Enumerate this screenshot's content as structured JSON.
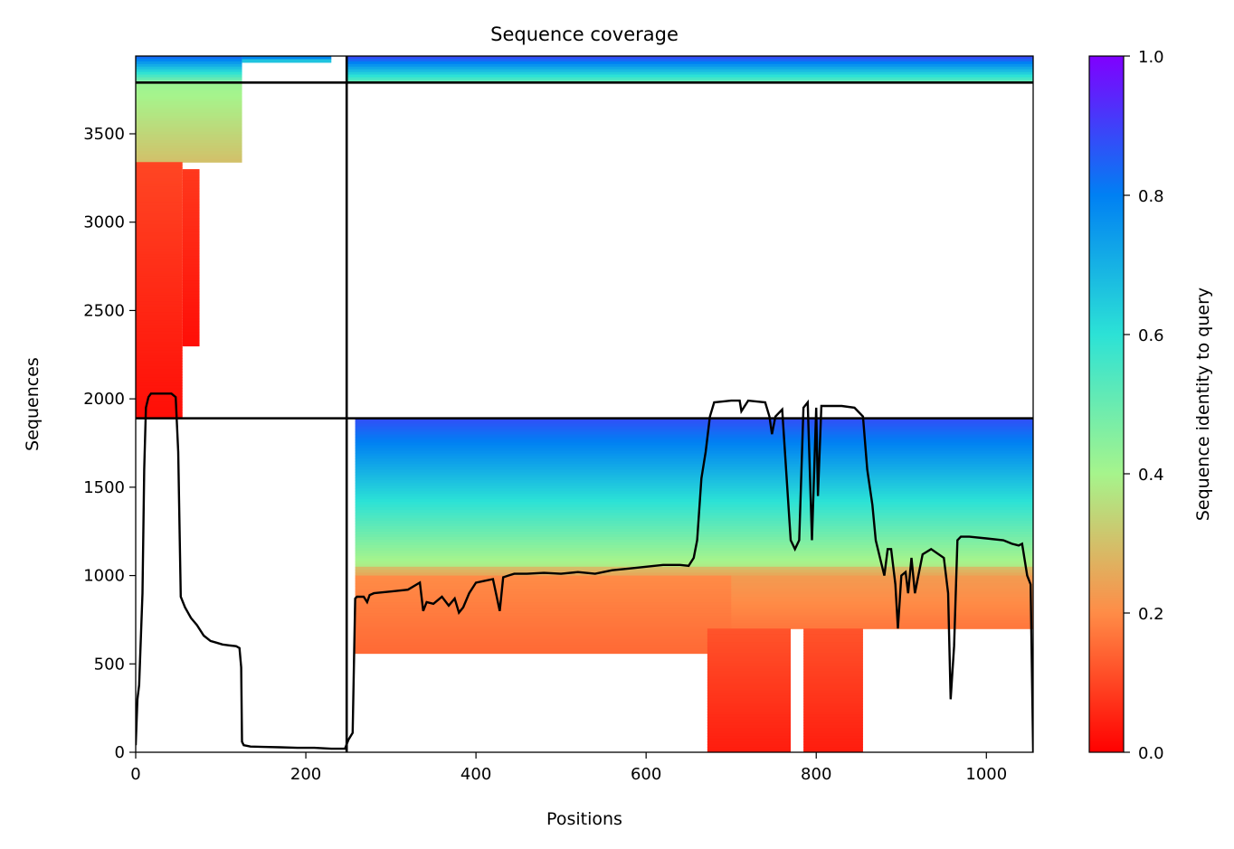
{
  "chart_data": {
    "type": "heatmap",
    "title": "Sequence coverage",
    "xlabel": "Positions",
    "ylabel": "Sequences",
    "colorbar_label": "Sequence identity to query",
    "xlim": [
      0,
      1055
    ],
    "ylim": [
      0,
      3940
    ],
    "x_ticks": [
      0,
      200,
      400,
      600,
      800,
      1000
    ],
    "y_ticks": [
      0,
      500,
      1000,
      1500,
      2000,
      2500,
      3000,
      3500
    ],
    "colorbar_ticks": [
      "0.0",
      "0.2",
      "0.4",
      "0.6",
      "0.8",
      "1.0"
    ],
    "colormap": "rainbow_r",
    "colormap_stops": [
      "#ff0000",
      "#ff8c47",
      "#a6f48c",
      "#2ce2d6",
      "#0080f3",
      "#8000ff"
    ],
    "line_color": "#000000",
    "separators": {
      "vertical_x": [
        248
      ],
      "horizontal_y": [
        1890,
        3790
      ]
    },
    "blocks": [
      {
        "x": [
          0,
          125
        ],
        "y": [
          3790,
          3940
        ],
        "identity_range": [
          0.45,
          0.85
        ]
      },
      {
        "x": [
          125,
          230
        ],
        "y": [
          3905,
          3940
        ],
        "identity_range": [
          0.6,
          0.85
        ]
      },
      {
        "x": [
          248,
          1055
        ],
        "y": [
          3790,
          3940
        ],
        "identity_range": [
          0.5,
          0.9
        ]
      },
      {
        "x": [
          0,
          125
        ],
        "y": [
          3340,
          3790
        ],
        "identity_range": [
          0.3,
          0.42
        ]
      },
      {
        "x": [
          0,
          55
        ],
        "y": [
          1890,
          3340
        ],
        "identity_range": [
          0.02,
          0.1
        ]
      },
      {
        "x": [
          55,
          75
        ],
        "y": [
          2300,
          3300
        ],
        "identity_range": [
          0.02,
          0.08
        ]
      },
      {
        "x": [
          258,
          1055
        ],
        "y": [
          1050,
          1890
        ],
        "identity_range": [
          0.38,
          0.88
        ]
      },
      {
        "x": [
          258,
          1055
        ],
        "y": [
          1000,
          1050
        ],
        "identity_range": [
          0.25,
          0.3
        ]
      },
      {
        "x": [
          660,
          1055
        ],
        "y": [
          700,
          1000
        ],
        "identity_range": [
          0.17,
          0.23
        ]
      },
      {
        "x": [
          258,
          700
        ],
        "y": [
          560,
          1000
        ],
        "identity_range": [
          0.15,
          0.2
        ]
      },
      {
        "x": [
          672,
          770
        ],
        "y": [
          0,
          700
        ],
        "identity_range": [
          0.04,
          0.12
        ]
      },
      {
        "x": [
          785,
          855
        ],
        "y": [
          0,
          700
        ],
        "identity_range": [
          0.04,
          0.12
        ]
      }
    ],
    "coverage_line": {
      "x": [
        0,
        2,
        4,
        8,
        10,
        12,
        15,
        18,
        22,
        28,
        35,
        42,
        47,
        50,
        53,
        58,
        65,
        72,
        80,
        88,
        95,
        102,
        110,
        118,
        122,
        124,
        125,
        127,
        135,
        150,
        170,
        190,
        210,
        230,
        246,
        250,
        255,
        258,
        260,
        268,
        272,
        275,
        280,
        300,
        320,
        334,
        338,
        342,
        350,
        360,
        368,
        375,
        380,
        385,
        392,
        400,
        410,
        420,
        428,
        432,
        438,
        445,
        460,
        480,
        500,
        520,
        540,
        560,
        580,
        600,
        620,
        640,
        650,
        656,
        660,
        665,
        670,
        675,
        680,
        690,
        700,
        710,
        712,
        720,
        740,
        745,
        748,
        752,
        760,
        770,
        775,
        780,
        785,
        790,
        795,
        800,
        802,
        806,
        815,
        830,
        845,
        855,
        860,
        866,
        870,
        875,
        880,
        884,
        888,
        893,
        896,
        900,
        905,
        908,
        912,
        916,
        920,
        925,
        935,
        950,
        955,
        958,
        962,
        966,
        970,
        980,
        1000,
        1020,
        1030,
        1038,
        1042,
        1048,
        1052,
        1055
      ],
      "y": [
        40,
        300,
        380,
        900,
        1600,
        1950,
        2010,
        2030,
        2030,
        2030,
        2030,
        2030,
        2010,
        1700,
        880,
        820,
        760,
        720,
        660,
        630,
        620,
        610,
        605,
        600,
        590,
        480,
        60,
        40,
        32,
        30,
        28,
        25,
        25,
        20,
        20,
        70,
        110,
        870,
        880,
        880,
        850,
        890,
        900,
        910,
        920,
        960,
        800,
        850,
        840,
        880,
        830,
        870,
        790,
        820,
        900,
        960,
        970,
        980,
        800,
        990,
        1000,
        1010,
        1010,
        1015,
        1010,
        1020,
        1010,
        1030,
        1040,
        1050,
        1060,
        1060,
        1055,
        1100,
        1200,
        1550,
        1700,
        1900,
        1980,
        1985,
        1990,
        1990,
        1930,
        1990,
        1980,
        1900,
        1800,
        1900,
        1940,
        1200,
        1150,
        1200,
        1950,
        1980,
        1200,
        1950,
        1450,
        1960,
        1960,
        1960,
        1950,
        1900,
        1600,
        1400,
        1200,
        1100,
        1000,
        1150,
        1150,
        950,
        700,
        1000,
        1020,
        900,
        1100,
        900,
        1000,
        1120,
        1150,
        1100,
        900,
        300,
        600,
        1200,
        1220,
        1220,
        1210,
        1200,
        1180,
        1170,
        1180,
        1000,
        950,
        0
      ]
    }
  }
}
